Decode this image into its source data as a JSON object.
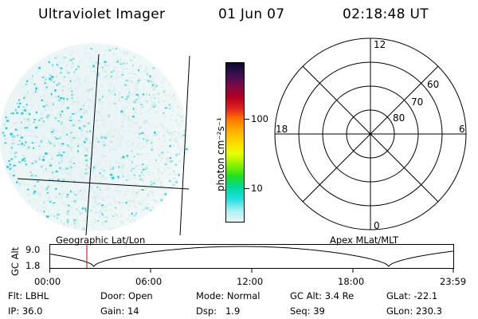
{
  "header": {
    "instrument": "Ultraviolet Imager",
    "date": "01 Jun 07",
    "time": "02:18:48 UT"
  },
  "colorbar": {
    "unit_label": "photon cm⁻²s⁻¹",
    "ticks": [
      "100",
      "10"
    ],
    "colors": [
      "#0a0a2a",
      "#3a1050",
      "#7a0a4a",
      "#b00020",
      "#e02020",
      "#ff7a00",
      "#ffb000",
      "#ffd800",
      "#e6ff00",
      "#8cf000",
      "#20e020",
      "#00d8a0",
      "#20e0e0",
      "#a8f0f0",
      "#e8f6f6"
    ]
  },
  "polar": {
    "top_label": "12",
    "left_label": "18",
    "right_label": "6",
    "bottom_label": "0",
    "ring_labels": [
      "60",
      "70",
      "80"
    ]
  },
  "captions": {
    "left": "Geographic Lat/Lon",
    "right": "Apex MLat/MLT"
  },
  "timeline": {
    "y_axis_label": "GC Alt",
    "y_ticks": [
      "9.0",
      "1.8"
    ],
    "x_ticks": [
      "00:00",
      "06:00",
      "12:00",
      "18:00",
      "23:59"
    ],
    "marker_color": "#c00000"
  },
  "info": {
    "row1": [
      "Flt: LBHL",
      "Door: Open",
      "Mode: Normal",
      "GC Alt: 3.4 Re",
      "GLat: -22.1"
    ],
    "row2": [
      "IP: 36.0",
      "Gain: 14",
      "Dsp:   1.9",
      "Seq: 39",
      "GLon: 230.3"
    ]
  }
}
